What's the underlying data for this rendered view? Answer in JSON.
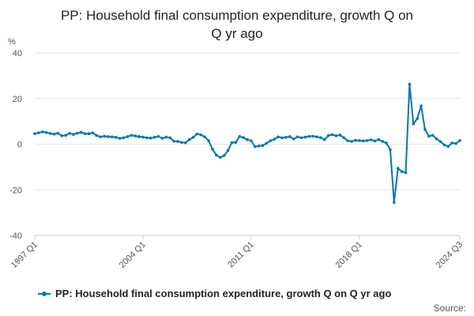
{
  "chart_data": {
    "type": "line",
    "title": "PP: Household final consumption expenditure, growth Q on Q yr ago",
    "title_lines": [
      "PP: Household final consumption expenditure, growth Q on",
      "Q yr ago"
    ],
    "ylabel": "%",
    "xlabel": "",
    "ylim": [
      -40,
      40
    ],
    "yticks": [
      40,
      20,
      0,
      -20,
      -40
    ],
    "x_tick_labels": [
      "1997 Q1",
      "2004 Q1",
      "2011 Q1",
      "2018 Q1",
      "2024 Q3"
    ],
    "x_tick_indices": [
      0,
      28,
      56,
      84,
      110
    ],
    "grid": true,
    "legend_position": "bottom",
    "series": [
      {
        "name": "PP: Household final consumption expenditure, growth Q on Q yr ago",
        "color": "#0077b4",
        "values": [
          4.6,
          5.0,
          5.4,
          5.1,
          4.7,
          4.4,
          4.8,
          3.7,
          3.9,
          4.7,
          4.3,
          4.8,
          5.2,
          4.6,
          4.6,
          4.9,
          3.8,
          3.2,
          3.5,
          3.3,
          3.2,
          3.0,
          2.6,
          2.8,
          3.3,
          3.9,
          3.6,
          3.3,
          3.1,
          2.8,
          2.7,
          3.0,
          3.4,
          2.6,
          3.1,
          2.8,
          1.3,
          1.2,
          0.8,
          0.6,
          2.0,
          3.0,
          4.5,
          4.1,
          3.2,
          1.5,
          -2.2,
          -4.8,
          -5.8,
          -5.0,
          -2.8,
          0.7,
          0.8,
          3.4,
          2.9,
          2.0,
          1.5,
          -1.1,
          -0.8,
          -0.6,
          0.4,
          1.5,
          2.2,
          3.2,
          2.8,
          3.0,
          3.3,
          2.3,
          3.2,
          2.8,
          3.1,
          3.4,
          3.5,
          3.2,
          2.9,
          2.0,
          3.8,
          4.2,
          3.7,
          4.0,
          2.8,
          1.5,
          1.2,
          1.7,
          1.6,
          1.4,
          1.6,
          1.9,
          1.4,
          2.0,
          1.2,
          0.5,
          -2.4,
          -25.5,
          -10.6,
          -12.0,
          -12.5,
          26.3,
          8.9,
          11.2,
          16.8,
          6.4,
          3.5,
          3.9,
          2.3,
          1.1,
          -0.3,
          -1.0,
          0.5,
          0.3,
          1.6
        ]
      }
    ]
  },
  "source_label": "Source:"
}
